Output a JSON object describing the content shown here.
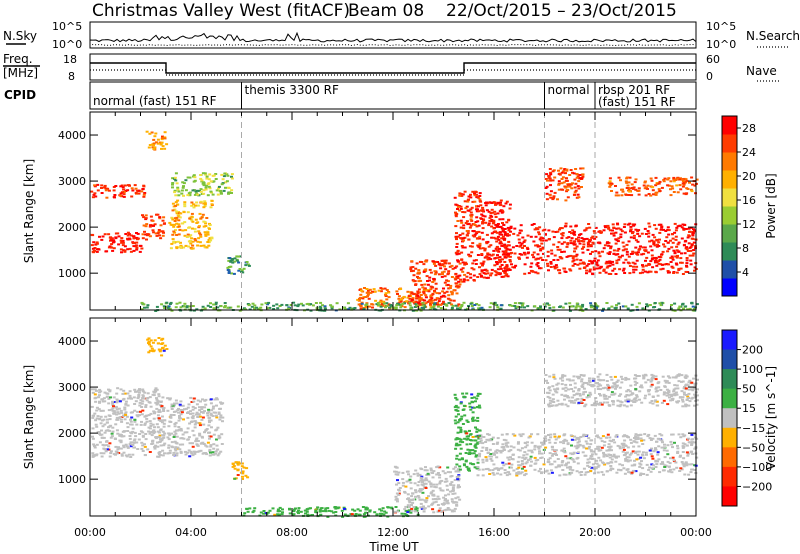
{
  "header": {
    "station": "Christmas Valley West (fitACF)",
    "beam": "Beam 08",
    "date_range": "22/Oct/2015 – 23/Oct/2015"
  },
  "noise_panel": {
    "left_label": "N.Sky",
    "right_label": "N.Search",
    "left_ticks": [
      "10^5",
      "10^0"
    ],
    "right_ticks": [
      "10^5",
      "10^0"
    ]
  },
  "freq_panel": {
    "left_label_line1": "Freq.",
    "left_label_line2": "[MHz]",
    "right_label": "Nave",
    "left_ticks": [
      "18",
      "8"
    ],
    "right_ticks": [
      "60",
      "0"
    ]
  },
  "cpid_panel": {
    "label": "CPID",
    "modes": [
      {
        "text": "normal (fast) 151 RF",
        "start_hour": 0,
        "end_hour": 6
      },
      {
        "text": "themis 3300 RF",
        "start_hour": 6,
        "end_hour": 18
      },
      {
        "text": "normal",
        "start_hour": 18,
        "end_hour": 20
      },
      {
        "text": "rbsp 201 RF",
        "start_hour": 20,
        "end_hour": 24
      },
      {
        "text": "(fast) 151 RF",
        "start_hour": 20,
        "end_hour": 24
      }
    ]
  },
  "chart_data": [
    {
      "type": "heatmap",
      "title": "",
      "xlabel": "Time UT",
      "ylabel": "Slant Range [km]",
      "xlim": [
        0,
        24
      ],
      "ylim": [
        200,
        4500
      ],
      "x_ticks": [
        "00:00",
        "04:00",
        "08:00",
        "12:00",
        "16:00",
        "20:00",
        "00:00"
      ],
      "y_ticks": [
        1000,
        2000,
        3000,
        4000
      ],
      "colorbar": {
        "label": "Power [dB]",
        "ticks": [
          4,
          8,
          12,
          16,
          20,
          24,
          28
        ],
        "range": [
          0,
          30
        ]
      },
      "scatter_regions": [
        {
          "t0": 0.0,
          "t1": 2.0,
          "r0": 1450,
          "r1": 1900,
          "level": 0.95
        },
        {
          "t0": 0.0,
          "t1": 2.2,
          "r0": 2650,
          "r1": 2950,
          "level": 0.9
        },
        {
          "t0": 2.0,
          "t1": 2.9,
          "r0": 1750,
          "r1": 2300,
          "level": 0.85
        },
        {
          "t0": 2.2,
          "t1": 3.0,
          "r0": 3700,
          "r1": 4100,
          "level": 0.7
        },
        {
          "t0": 3.1,
          "t1": 4.8,
          "r0": 1550,
          "r1": 2600,
          "level": 0.6
        },
        {
          "t0": 3.2,
          "t1": 5.6,
          "r0": 2700,
          "r1": 3200,
          "level": 0.4
        },
        {
          "t0": 5.4,
          "t1": 6.3,
          "r0": 1000,
          "r1": 1400,
          "level": 0.25
        },
        {
          "t0": 10.5,
          "t1": 13.6,
          "r0": 250,
          "r1": 700,
          "level": 0.75
        },
        {
          "t0": 12.6,
          "t1": 14.6,
          "r0": 300,
          "r1": 1300,
          "level": 0.85
        },
        {
          "t0": 14.4,
          "t1": 15.4,
          "r0": 800,
          "r1": 2800,
          "level": 0.9
        },
        {
          "t0": 15.4,
          "t1": 16.6,
          "r0": 900,
          "r1": 2600,
          "level": 0.95
        },
        {
          "t0": 16.0,
          "t1": 24.0,
          "r0": 1000,
          "r1": 2100,
          "level": 0.95
        },
        {
          "t0": 18.0,
          "t1": 19.5,
          "r0": 2600,
          "r1": 3300,
          "level": 0.85
        },
        {
          "t0": 20.5,
          "t1": 24.0,
          "r0": 2700,
          "r1": 3100,
          "level": 0.8
        },
        {
          "t0": 2.0,
          "t1": 24.0,
          "r0": 200,
          "r1": 380,
          "level": 0.3
        }
      ]
    },
    {
      "type": "heatmap",
      "title": "",
      "xlabel": "Time UT",
      "ylabel": "Slant Range [km]",
      "xlim": [
        0,
        24
      ],
      "ylim": [
        200,
        4500
      ],
      "x_ticks": [
        "00:00",
        "04:00",
        "08:00",
        "12:00",
        "16:00",
        "20:00",
        "00:00"
      ],
      "y_ticks": [
        1000,
        2000,
        3000,
        4000
      ],
      "colorbar": {
        "label": "Velocity [m s^-1]",
        "tick_labels": [
          "200",
          "100",
          "50",
          "15",
          "−15",
          "−50",
          "−100",
          "−200"
        ]
      },
      "scatter_regions": [
        {
          "t0": 0.0,
          "t1": 2.9,
          "r0": 1500,
          "r1": 3000,
          "velocity": "ground"
        },
        {
          "t0": 3.0,
          "t1": 5.2,
          "r0": 1500,
          "r1": 2800,
          "velocity": "ground"
        },
        {
          "t0": 2.2,
          "t1": 3.0,
          "r0": 3700,
          "r1": 4100,
          "velocity": "-50"
        },
        {
          "t0": 5.6,
          "t1": 6.2,
          "r0": 1000,
          "r1": 1400,
          "velocity": "-50"
        },
        {
          "t0": 6.0,
          "t1": 13.0,
          "r0": 200,
          "r1": 420,
          "velocity": "50"
        },
        {
          "t0": 12.0,
          "t1": 14.6,
          "r0": 300,
          "r1": 1300,
          "velocity": "ground"
        },
        {
          "t0": 14.4,
          "t1": 15.4,
          "r0": 1200,
          "r1": 2900,
          "velocity": "50"
        },
        {
          "t0": 15.3,
          "t1": 24.0,
          "r0": 1100,
          "r1": 2000,
          "velocity": "ground"
        },
        {
          "t0": 18.0,
          "t1": 24.0,
          "r0": 2600,
          "r1": 3300,
          "velocity": "ground"
        }
      ]
    }
  ]
}
